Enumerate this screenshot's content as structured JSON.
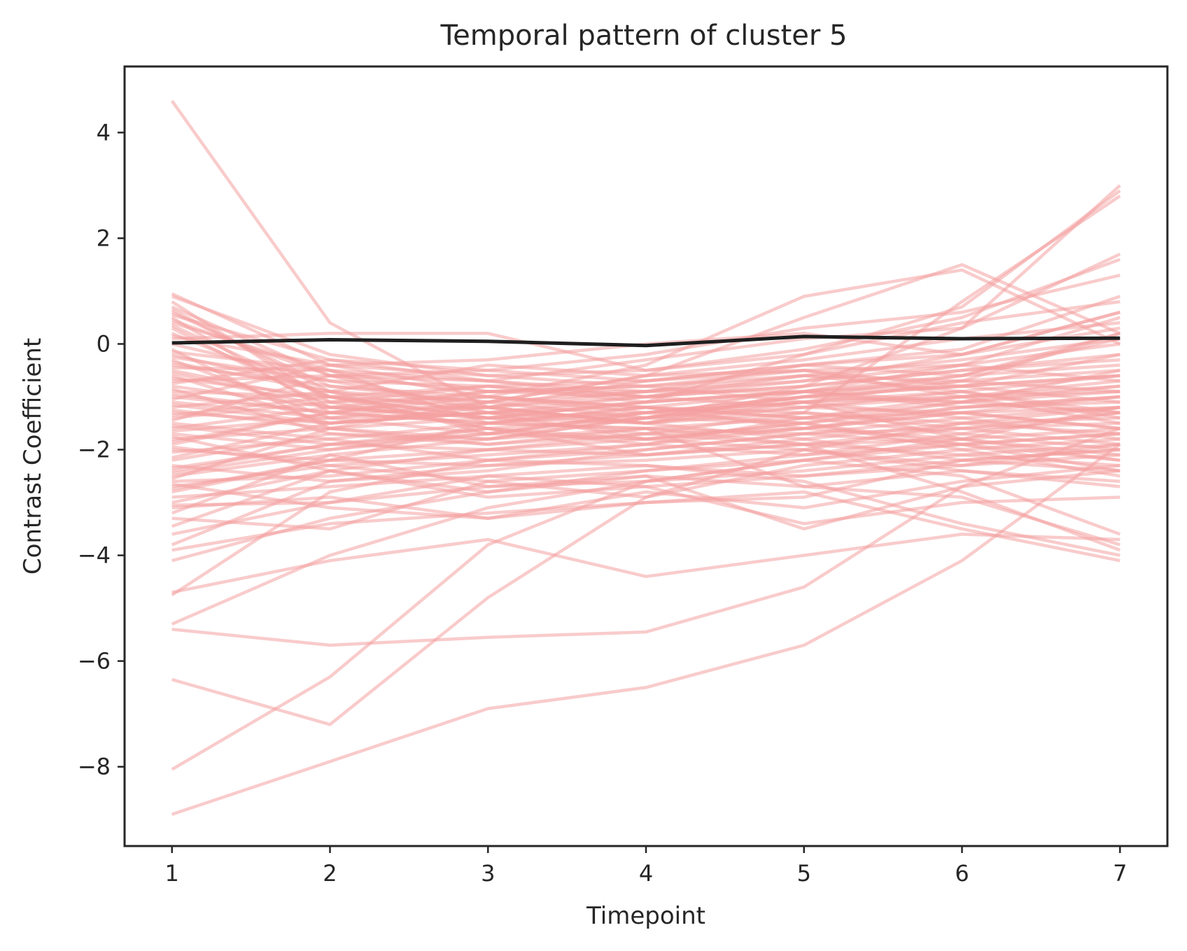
{
  "chart_data": {
    "type": "line",
    "title": "Temporal pattern of cluster 5",
    "xlabel": "Timepoint",
    "ylabel": "Contrast Coefficient",
    "x": [
      1,
      2,
      3,
      4,
      5,
      6,
      7
    ],
    "xlim": [
      0.7,
      7.3
    ],
    "ylim": [
      -9.5,
      5.25
    ],
    "x_ticks": [
      1,
      2,
      3,
      4,
      5,
      6,
      7
    ],
    "y_ticks": [
      -8,
      -6,
      -4,
      -2,
      0,
      2,
      4
    ],
    "y_tick_labels": [
      "−8",
      "−6",
      "−4",
      "−2",
      "0",
      "2",
      "4"
    ],
    "grid": false,
    "colors": {
      "traces": "#f4a0a0",
      "mean": "#1f1f1f"
    },
    "series": [
      {
        "values": [
          0.02,
          0.08,
          0.05,
          -0.03,
          0.14,
          0.1,
          0.11
        ]
      },
      {
        "values": [
          4.6,
          0.4,
          -1.2,
          -1.5,
          -0.9,
          -1.1,
          -1.3
        ]
      },
      {
        "values": [
          -8.9,
          -7.9,
          -6.9,
          -6.5,
          -5.7,
          -4.1,
          -1.9
        ]
      },
      {
        "values": [
          -8.05,
          -6.3,
          -3.8,
          -2.6,
          -2.2,
          -1.8,
          -1.6
        ]
      },
      {
        "values": [
          -6.35,
          -7.2,
          -4.8,
          -2.9,
          -2.0,
          -1.5,
          -1.2
        ]
      },
      {
        "values": [
          -5.4,
          -5.7,
          -5.55,
          -5.45,
          -4.6,
          -2.7,
          -1.6
        ]
      },
      {
        "values": [
          -5.3,
          -4.0,
          -3.1,
          -2.6,
          -2.2,
          -1.9,
          -1.7
        ]
      },
      {
        "values": [
          -4.7,
          -4.1,
          -3.7,
          -4.4,
          -4.0,
          -3.6,
          -3.7
        ]
      },
      {
        "values": [
          -4.75,
          -2.8,
          -2.2,
          -2.0,
          -1.7,
          -1.6,
          -1.5
        ]
      },
      {
        "values": [
          -4.1,
          -3.3,
          -2.8,
          -2.4,
          -2.1,
          -1.9,
          -1.7
        ]
      },
      {
        "values": [
          -3.9,
          -3.4,
          -3.2,
          -3.0,
          -2.8,
          -3.5,
          -4.1
        ]
      },
      {
        "values": [
          -3.8,
          -2.6,
          -2.3,
          -2.2,
          -2.0,
          -2.4,
          -2.7
        ]
      },
      {
        "values": [
          -3.6,
          -3.0,
          -2.5,
          -2.7,
          -3.4,
          -3.0,
          -2.9
        ]
      },
      {
        "values": [
          -3.3,
          -3.5,
          -2.6,
          -2.9,
          -2.3,
          -2.0,
          -1.8
        ]
      },
      {
        "values": [
          -3.1,
          -2.9,
          -3.3,
          -3.0,
          -2.9,
          -2.2,
          -2.0
        ]
      },
      {
        "values": [
          -3.0,
          -2.4,
          -2.8,
          -2.5,
          -3.5,
          -2.7,
          -2.4
        ]
      },
      {
        "values": [
          -2.8,
          -2.2,
          -2.0,
          -2.1,
          -1.9,
          -2.8,
          -3.9
        ]
      },
      {
        "values": [
          -2.6,
          -2.5,
          -2.2,
          -2.3,
          -2.6,
          -3.4,
          -4.0
        ]
      },
      {
        "values": [
          -2.4,
          -1.9,
          -1.6,
          -1.8,
          -1.5,
          -1.1,
          -0.8
        ]
      },
      {
        "values": [
          -2.2,
          -1.7,
          -1.8,
          -1.4,
          -1.2,
          -0.9,
          -0.6
        ]
      },
      {
        "values": [
          -2.0,
          -2.2,
          -1.5,
          -1.6,
          -1.9,
          -2.1,
          -2.3
        ]
      },
      {
        "values": [
          -1.9,
          -1.3,
          -1.2,
          -1.5,
          -1.1,
          -0.7,
          0.2
        ]
      },
      {
        "values": [
          -1.8,
          -1.6,
          -1.9,
          -1.7,
          -1.6,
          -1.3,
          -1.0
        ]
      },
      {
        "values": [
          -1.7,
          -2.0,
          -1.6,
          -2.1,
          -1.8,
          -1.5,
          -1.4
        ]
      },
      {
        "values": [
          -1.6,
          -1.2,
          -1.4,
          -1.1,
          -0.9,
          -0.4,
          0.5
        ]
      },
      {
        "values": [
          -1.5,
          -1.8,
          -2.2,
          -1.9,
          -1.4,
          -1.0,
          -0.7
        ]
      },
      {
        "values": [
          -1.4,
          -1.1,
          -1.0,
          -1.2,
          -1.3,
          -1.6,
          -1.9
        ]
      },
      {
        "values": [
          -1.3,
          -1.5,
          -1.3,
          -1.0,
          -0.8,
          -0.5,
          -0.2
        ]
      },
      {
        "values": [
          -1.2,
          -0.9,
          -1.1,
          -1.4,
          -1.5,
          -1.2,
          -1.1
        ]
      },
      {
        "values": [
          -1.1,
          -1.4,
          -1.7,
          -1.3,
          -1.0,
          -0.8,
          -0.6
        ]
      },
      {
        "values": [
          -1.0,
          -1.3,
          -1.5,
          -1.6,
          -1.7,
          -1.9,
          -2.2
        ]
      },
      {
        "values": [
          -0.9,
          -1.0,
          -0.8,
          -1.0,
          -0.6,
          -0.3,
          0.1
        ]
      },
      {
        "values": [
          -0.8,
          -1.2,
          -1.4,
          -1.5,
          -1.2,
          -1.0,
          -0.9
        ]
      },
      {
        "values": [
          -0.7,
          -0.6,
          -0.9,
          -0.8,
          -1.1,
          -1.4,
          -1.8
        ]
      },
      {
        "values": [
          -0.6,
          -1.5,
          -1.2,
          -0.7,
          -0.4,
          -0.2,
          0.3
        ]
      },
      {
        "values": [
          -0.5,
          -1.1,
          -1.6,
          -1.4,
          -1.0,
          -0.6,
          -0.4
        ]
      },
      {
        "values": [
          -0.4,
          -0.8,
          -1.0,
          -1.2,
          -1.4,
          -1.7,
          -2.0
        ]
      },
      {
        "values": [
          -0.3,
          -1.4,
          -1.3,
          -1.1,
          -0.9,
          -0.7,
          -0.5
        ]
      },
      {
        "values": [
          -0.2,
          -0.9,
          -1.7,
          -1.8,
          -1.6,
          -1.3,
          -1.2
        ]
      },
      {
        "values": [
          -0.1,
          -1.6,
          -1.1,
          -0.9,
          -0.7,
          -0.4,
          0.0
        ]
      },
      {
        "values": [
          0.0,
          -0.7,
          -1.2,
          -1.5,
          -1.3,
          -1.5,
          -1.7
        ]
      },
      {
        "values": [
          0.2,
          -1.0,
          -1.4,
          -1.3,
          -1.1,
          -1.0,
          -0.8
        ]
      },
      {
        "values": [
          0.3,
          -1.2,
          -0.9,
          -1.0,
          -0.8,
          -0.5,
          -0.3
        ]
      },
      {
        "values": [
          0.4,
          -0.5,
          -0.7,
          -0.9,
          -0.6,
          -0.9,
          -1.3
        ]
      },
      {
        "values": [
          0.5,
          -1.3,
          -1.5,
          -1.2,
          -1.4,
          -1.1,
          -0.9
        ]
      },
      {
        "values": [
          0.6,
          -0.8,
          -1.1,
          -0.6,
          -0.3,
          0.1,
          0.4
        ]
      },
      {
        "values": [
          0.7,
          -0.6,
          -1.3,
          -1.4,
          -1.0,
          -0.8,
          -0.6
        ]
      },
      {
        "values": [
          0.8,
          -1.1,
          -0.8,
          -0.7,
          -0.5,
          -1.0,
          -1.5
        ]
      },
      {
        "values": [
          0.9,
          -0.2,
          -0.6,
          -0.5,
          -0.2,
          0.4,
          0.8
        ]
      },
      {
        "values": [
          0.95,
          -0.4,
          -0.9,
          -0.8,
          -0.6,
          -0.7,
          -0.9
        ]
      },
      {
        "values": [
          -2.3,
          -2.6,
          -2.4,
          -2.0,
          -1.7,
          -1.4,
          -1.2
        ]
      },
      {
        "values": [
          -2.5,
          -2.1,
          -2.7,
          -2.6,
          -2.4,
          -2.1,
          -1.9
        ]
      },
      {
        "values": [
          -2.7,
          -2.3,
          -2.1,
          -1.9,
          -1.6,
          -1.2,
          -1.0
        ]
      },
      {
        "values": [
          -2.9,
          -2.7,
          -2.5,
          -2.3,
          -2.5,
          -2.3,
          -2.1
        ]
      },
      {
        "values": [
          -1.55,
          -1.9,
          -2.0,
          -1.7,
          -1.3,
          0.8,
          2.8
        ]
      },
      {
        "values": [
          -1.25,
          -1.6,
          -1.8,
          -1.4,
          -0.8,
          0.3,
          3.0
        ]
      },
      {
        "values": [
          -0.65,
          -1.0,
          -1.4,
          -1.1,
          -0.2,
          0.7,
          2.9
        ]
      },
      {
        "values": [
          -0.35,
          -0.9,
          -0.4,
          -0.6,
          0.5,
          1.5,
          0.2
        ]
      },
      {
        "values": [
          -0.15,
          -0.5,
          -1.0,
          -0.4,
          0.9,
          1.4,
          0.0
        ]
      },
      {
        "values": [
          0.1,
          0.2,
          0.2,
          -0.5,
          -0.1,
          0.5,
          1.6
        ]
      },
      {
        "values": [
          -0.75,
          -0.3,
          -0.7,
          -0.3,
          0.1,
          0.3,
          1.7
        ]
      },
      {
        "values": [
          -1.45,
          -0.6,
          -0.5,
          -0.2,
          0.3,
          0.6,
          1.3
        ]
      },
      {
        "values": [
          -1.85,
          -1.3,
          -0.9,
          -0.9,
          -0.4,
          -0.1,
          0.9
        ]
      },
      {
        "values": [
          -1.05,
          -0.4,
          -0.3,
          0.0,
          0.2,
          -0.2,
          0.6
        ]
      },
      {
        "values": [
          -0.85,
          -1.7,
          -1.9,
          -1.6,
          -2.7,
          -2.4,
          -2.6
        ]
      },
      {
        "values": [
          -1.95,
          -2.3,
          -2.6,
          -2.4,
          -2.2,
          -2.5,
          -3.6
        ]
      },
      {
        "values": [
          -2.15,
          -1.5,
          -1.3,
          -1.5,
          -1.8,
          -2.2,
          -2.4
        ]
      },
      {
        "values": [
          -2.45,
          -2.0,
          -1.7,
          -1.4,
          -1.1,
          -1.8,
          -2.2
        ]
      },
      {
        "values": [
          -3.45,
          -2.4,
          -2.0,
          -1.8,
          -1.5,
          -2.0,
          -2.5
        ]
      },
      {
        "values": [
          -3.2,
          -2.1,
          -1.8,
          -1.6,
          -1.4,
          -1.3,
          -1.6
        ]
      },
      {
        "values": [
          -1.35,
          -1.0,
          -1.6,
          -1.9,
          -2.1,
          -1.7,
          -1.3
        ]
      },
      {
        "values": [
          -0.95,
          -1.3,
          -1.0,
          -1.3,
          -1.5,
          -1.9,
          -2.4
        ]
      },
      {
        "values": [
          -0.55,
          -1.2,
          -1.2,
          -0.9,
          -0.9,
          -0.8,
          -1.1
        ]
      },
      {
        "values": [
          -0.25,
          -0.7,
          -0.8,
          -1.1,
          -0.9,
          -1.2,
          -1.0
        ]
      },
      {
        "values": [
          0.15,
          -0.4,
          -0.6,
          -0.8,
          -0.5,
          -0.4,
          -0.7
        ]
      },
      {
        "values": [
          0.35,
          -1.0,
          -1.2,
          -1.0,
          -0.7,
          -0.2,
          0.6
        ]
      },
      {
        "values": [
          0.55,
          -0.3,
          -0.5,
          -0.7,
          -0.4,
          -0.6,
          0.1
        ]
      },
      {
        "values": [
          -1.65,
          -1.4,
          -1.1,
          -0.6,
          -0.5,
          -0.8,
          -0.2
        ]
      },
      {
        "values": [
          -2.05,
          -1.8,
          -1.5,
          -1.2,
          -0.9,
          -0.6,
          0.2
        ]
      },
      {
        "values": [
          -2.35,
          -1.9,
          -1.7,
          -1.3,
          -1.0,
          -1.1,
          -0.5
        ]
      },
      {
        "values": [
          -2.55,
          -1.6,
          -1.4,
          -1.7,
          -1.9,
          -1.8,
          -1.2
        ]
      },
      {
        "values": [
          -2.75,
          -2.2,
          -2.3,
          -2.1,
          -1.9,
          -1.6,
          -1.3
        ]
      },
      {
        "values": [
          -1.15,
          -1.5,
          -1.3,
          -1.8,
          -2.0,
          -2.3,
          -1.9
        ]
      },
      {
        "values": [
          -0.45,
          -0.5,
          -1.5,
          -1.3,
          -1.1,
          -0.9,
          -1.4
        ]
      },
      {
        "values": [
          0.45,
          -0.6,
          -0.7,
          -1.0,
          -1.2,
          -1.3,
          -1.6
        ]
      },
      {
        "values": [
          0.65,
          -0.9,
          -1.3,
          -1.2,
          -1.6,
          -1.8,
          -2.1
        ]
      },
      {
        "values": [
          -1.75,
          -2.4,
          -2.9,
          -2.7,
          -2.5,
          -2.2,
          -2.0
        ]
      },
      {
        "values": [
          -3.05,
          -3.0,
          -2.7,
          -2.5,
          -2.7,
          -2.9,
          -3.8
        ]
      },
      {
        "values": [
          -2.65,
          -3.1,
          -3.3,
          -2.8,
          -3.1,
          -2.6,
          -2.3
        ]
      }
    ]
  }
}
